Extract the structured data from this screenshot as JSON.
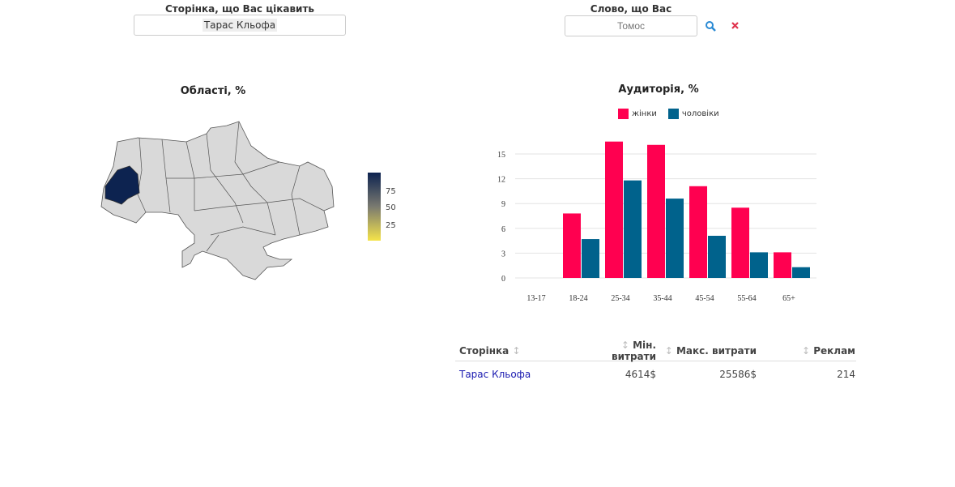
{
  "page_select": {
    "label": "Сторінка, що Вас цікавить",
    "value": "Тарас Кльофа"
  },
  "word_search": {
    "label": "Слово, що Вас цікавить",
    "placeholder": "Томос",
    "search_icon": "search-icon",
    "clear_icon": "close-icon"
  },
  "map": {
    "title": "Області, %",
    "highlighted_region": "Львівська",
    "colorbar_ticks": [
      "75",
      "50",
      "25"
    ],
    "colorscale": [
      "#f5e44a",
      "#7a7a70",
      "#0d2350"
    ],
    "base_color": "#d9d9d9"
  },
  "chart_data": {
    "type": "bar",
    "title": "Аудиторія, %",
    "xlabel": "",
    "ylabel": "",
    "categories": [
      "13-17",
      "18-24",
      "25-34",
      "35-44",
      "45-54",
      "55-64",
      "65+"
    ],
    "ylim": [
      0,
      16.5
    ],
    "yticks": [
      "0",
      "3",
      "6",
      "9",
      "12",
      "15"
    ],
    "grid": true,
    "legend": "top",
    "series": [
      {
        "name": "жінки",
        "color": "#ff0050",
        "values": [
          0,
          7.8,
          16.5,
          16.1,
          11.1,
          8.5,
          3.1
        ]
      },
      {
        "name": "чоловіки",
        "color": "#00628c",
        "values": [
          0,
          4.7,
          11.8,
          9.6,
          5.1,
          3.1,
          1.3
        ]
      }
    ]
  },
  "table": {
    "headers": [
      "Сторінка",
      "Мін. витрати",
      "Макс. витрати",
      "Реклам"
    ],
    "rows": [
      [
        "Тарас Кльофа",
        "4614$",
        "25586$",
        "214"
      ]
    ]
  }
}
